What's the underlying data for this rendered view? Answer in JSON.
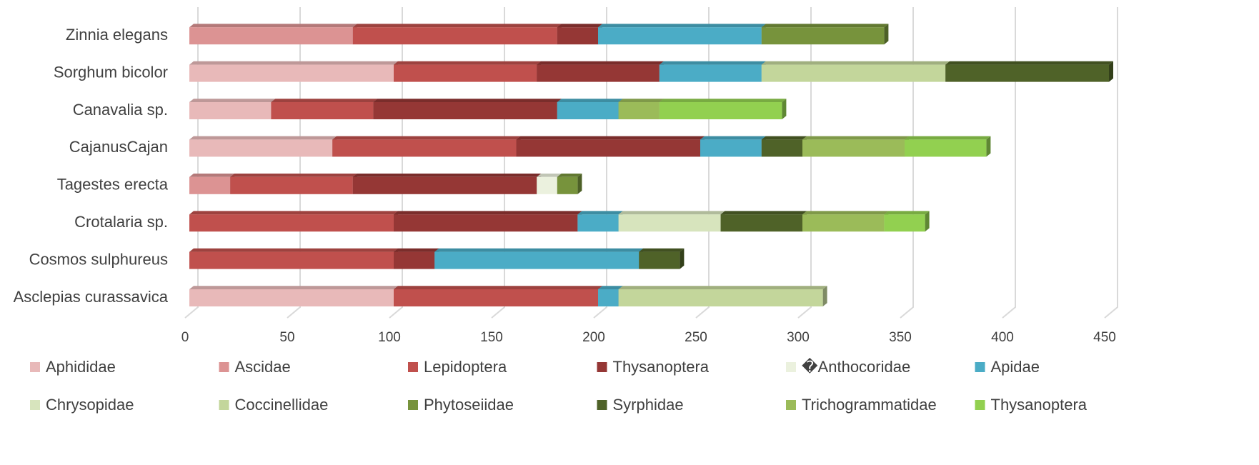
{
  "chart_data": {
    "type": "bar",
    "orientation": "horizontal",
    "stacked": true,
    "three_d": true,
    "categories": [
      "Asclepias curassavica",
      "Cosmos sulphureus",
      "Crotalaria sp.",
      "Tagestes erecta",
      "CajanusCajan",
      "Canavalia sp.",
      "Sorghum bicolor",
      "Zinnia elegans"
    ],
    "series": [
      {
        "name": "Aphididae",
        "color": "#e8b9b9",
        "values": [
          100,
          null,
          null,
          null,
          70,
          40,
          100,
          null
        ]
      },
      {
        "name": "Ascidae",
        "color": "#dc9393",
        "values": [
          null,
          null,
          null,
          20,
          null,
          null,
          null,
          80
        ]
      },
      {
        "name": "Lepidoptera",
        "color": "#c0504d",
        "values": [
          100,
          100,
          100,
          60,
          90,
          50,
          70,
          100
        ]
      },
      {
        "name": "Thysanoptera",
        "color": "#953735",
        "values": [
          null,
          20,
          90,
          90,
          90,
          90,
          60,
          20
        ]
      },
      {
        "name": "�Anthocoridae",
        "color": "#ebf1de",
        "values": [
          null,
          null,
          null,
          10,
          null,
          null,
          null,
          null
        ]
      },
      {
        "name": "Apidae",
        "color": "#4bacc6",
        "values": [
          10,
          100,
          20,
          null,
          30,
          30,
          50,
          80
        ]
      },
      {
        "name": "Chrysopidae",
        "color": "#d7e4bd",
        "values": [
          null,
          null,
          50,
          null,
          null,
          null,
          null,
          null
        ]
      },
      {
        "name": "Coccinellidae",
        "color": "#c3d69b",
        "values": [
          100,
          null,
          null,
          null,
          null,
          null,
          90,
          null
        ]
      },
      {
        "name": "Phytoseiidae",
        "color": "#77933c",
        "values": [
          null,
          null,
          null,
          10,
          null,
          null,
          null,
          60
        ]
      },
      {
        "name": "Syrphidae",
        "color": "#4f6228",
        "values": [
          null,
          20,
          40,
          null,
          20,
          null,
          80,
          null
        ]
      },
      {
        "name": "Trichogrammatidae",
        "color": "#9bbb59",
        "values": [
          null,
          null,
          40,
          null,
          50,
          20,
          null,
          null
        ]
      },
      {
        "name": "Thysanoptera",
        "color": "#92d050",
        "values": [
          null,
          null,
          20,
          null,
          40,
          60,
          null,
          null
        ]
      }
    ],
    "xlim": [
      0,
      450
    ],
    "xticks": [
      0,
      50,
      100,
      150,
      200,
      250,
      300,
      350,
      400,
      450
    ],
    "grid": true,
    "legend": "bottom"
  }
}
